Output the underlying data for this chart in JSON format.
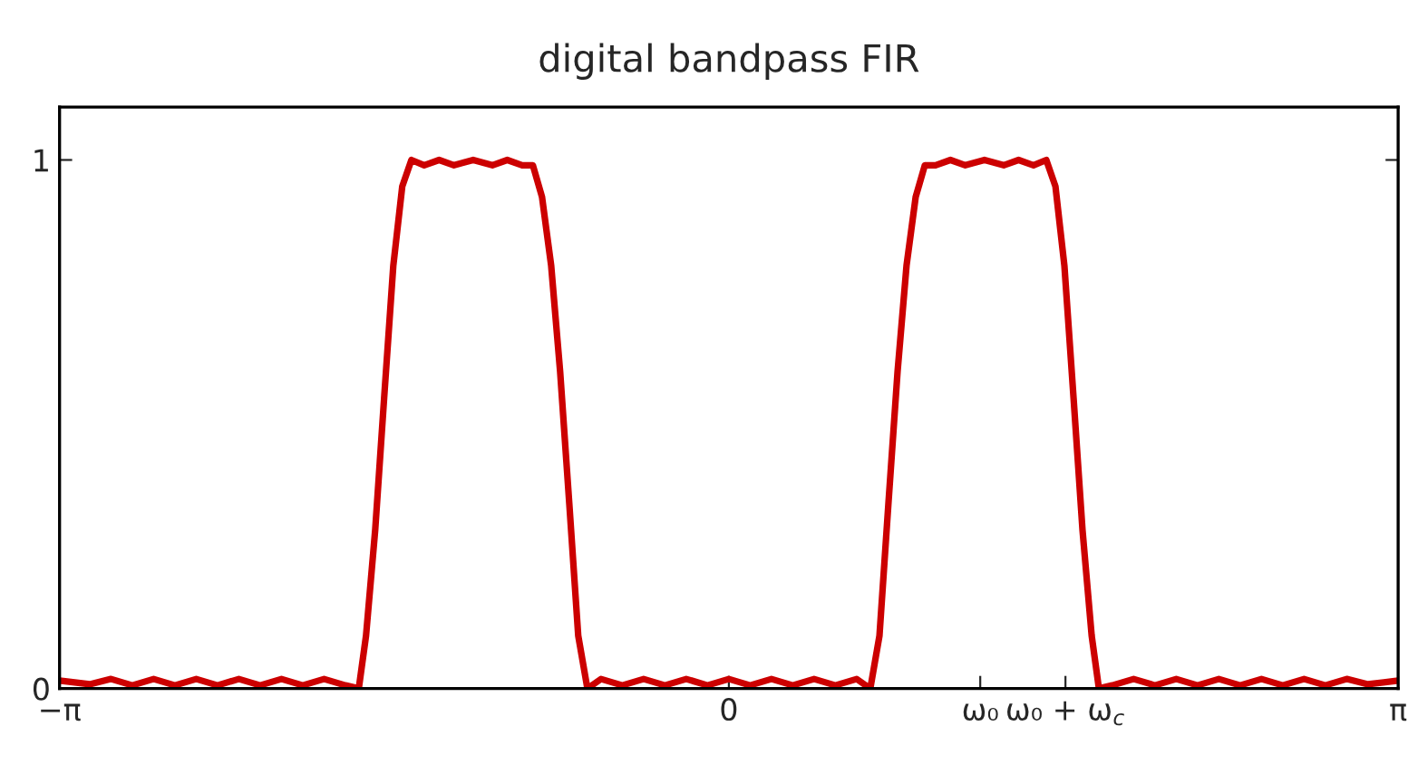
{
  "chart_data": {
    "type": "line",
    "title": "digital bandpass FIR",
    "x": [
      -3.1416,
      -3.0,
      -2.9,
      -2.8,
      -2.7,
      -2.6,
      -2.5,
      -2.4,
      -2.3,
      -2.2,
      -2.1,
      -2.0,
      -1.9,
      -1.8,
      -1.737,
      -1.703,
      -1.66,
      -1.618,
      -1.575,
      -1.533,
      -1.49,
      -1.43,
      -1.36,
      -1.29,
      -1.2,
      -1.11,
      -1.04,
      -0.97,
      -0.92,
      -0.877,
      -0.834,
      -0.792,
      -0.749,
      -0.707,
      -0.664,
      -0.6,
      -0.5,
      -0.4,
      -0.3,
      -0.2,
      -0.1,
      0,
      0.1,
      0.2,
      0.3,
      0.4,
      0.5,
      0.6,
      0.664,
      0.707,
      0.749,
      0.792,
      0.834,
      0.877,
      0.92,
      0.97,
      1.04,
      1.11,
      1.2,
      1.29,
      1.36,
      1.43,
      1.49,
      1.533,
      1.575,
      1.618,
      1.66,
      1.703,
      1.737,
      1.8,
      1.9,
      2.0,
      2.1,
      2.2,
      2.3,
      2.4,
      2.5,
      2.6,
      2.7,
      2.8,
      2.9,
      3.0,
      3.1416
    ],
    "series": [
      {
        "color": "#cc0000",
        "values": [
          0.015,
          0.008,
          0.018,
          0.006,
          0.018,
          0.006,
          0.018,
          0.006,
          0.018,
          0.006,
          0.018,
          0.006,
          0.018,
          0.006,
          0,
          0.1,
          0.3,
          0.55,
          0.8,
          0.95,
          1.0,
          0.99,
          1.0,
          0.99,
          1.0,
          0.99,
          1.0,
          0.99,
          0.99,
          0.93,
          0.8,
          0.6,
          0.35,
          0.1,
          0,
          0.018,
          0.006,
          0.018,
          0.006,
          0.018,
          0.006,
          0.018,
          0.006,
          0.018,
          0.006,
          0.018,
          0.006,
          0.018,
          0,
          0.1,
          0.35,
          0.6,
          0.8,
          0.93,
          0.99,
          0.99,
          1.0,
          0.99,
          1.0,
          0.99,
          1.0,
          0.99,
          1.0,
          0.95,
          0.8,
          0.55,
          0.3,
          0.1,
          0,
          0.006,
          0.018,
          0.006,
          0.018,
          0.006,
          0.018,
          0.006,
          0.018,
          0.006,
          0.018,
          0.006,
          0.018,
          0.008,
          0.015
        ]
      }
    ],
    "xlim": [
      -3.1416,
      3.1416
    ],
    "xticks": [
      {
        "value": -3.1416,
        "label": "−π"
      },
      {
        "value": 0,
        "label": "0"
      },
      {
        "value": 1.18,
        "label": "ω₀"
      },
      {
        "value": 1.58,
        "label": "ω₀ + ω$_{c}$"
      },
      {
        "value": 3.1416,
        "label": "π"
      }
    ],
    "ylim": [
      0,
      1.1
    ],
    "yticks": [
      0,
      1
    ],
    "grid": false,
    "legend": false,
    "marker": "none",
    "line_style": "solid"
  }
}
